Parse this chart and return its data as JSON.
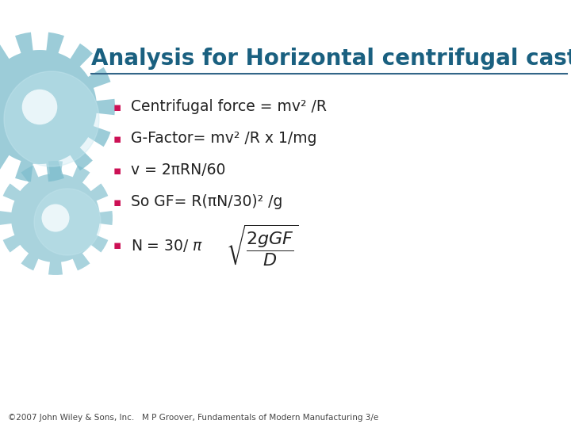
{
  "title": "Analysis for Horizontal centrifugal casting",
  "title_color": "#1a6080",
  "title_fontsize": 20,
  "background_color": "#FFFFFF",
  "bullet_color": "#CC1155",
  "bullet_text_color": "#222222",
  "bullet_fontsize": 13.5,
  "bullets": [
    "Centrifugal force = mv² /R",
    "G-Factor= mv² /R x 1/mg",
    "v = 2πRN/60",
    "So GF= R(πN/30)² /g"
  ],
  "line_color": "#336688",
  "footer_text": "©2007 John Wiley & Sons, Inc.   M P Groover, Fundamentals of Modern Manufacturing 3/e",
  "footer_fontsize": 7.5,
  "footer_color": "#444444",
  "gear_color": "#7BBCCC",
  "gear_alpha": 0.75
}
